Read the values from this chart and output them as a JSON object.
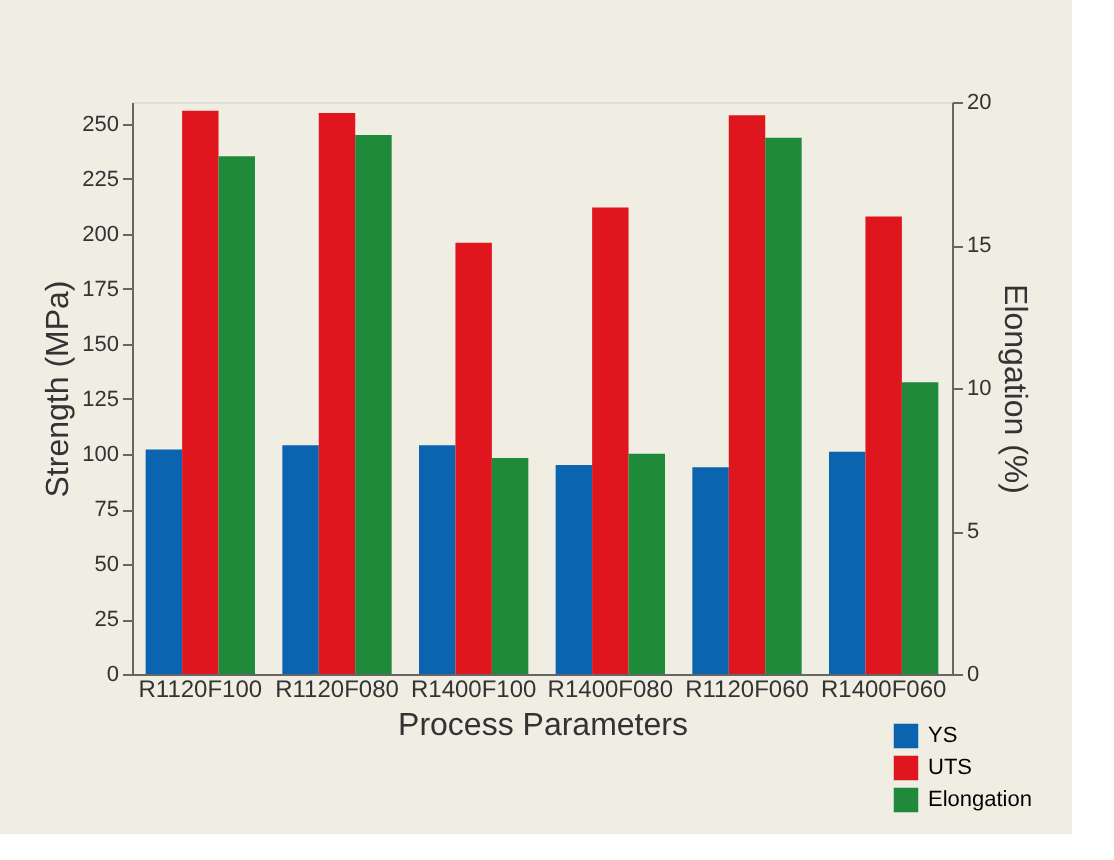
{
  "chart_data": {
    "type": "bar",
    "xlabel": "Process Parameters",
    "ylabel": "Strength (MPa)",
    "y2label": "Elongation (%)",
    "categories": [
      "R1120F100",
      "R1120F080",
      "R1400F100",
      "R1400F080",
      "R1120F060",
      "R1400F060"
    ],
    "series": [
      {
        "name": "YS",
        "color": "#0a64b0",
        "values": [
          102,
          104,
          104,
          95,
          94,
          101
        ]
      },
      {
        "name": "UTS",
        "color": "#e0161e",
        "values": [
          256,
          255,
          196,
          212,
          254,
          208
        ]
      },
      {
        "name": "Elongation",
        "color": "#1e8a3a",
        "values": [
          18.1,
          18.85,
          7.55,
          7.7,
          18.75,
          10.2
        ],
        "axis": "y2"
      }
    ],
    "ylim": [
      0,
      260
    ],
    "yticks": [
      0,
      25,
      50,
      75,
      100,
      125,
      150,
      175,
      200,
      225,
      250
    ],
    "y2lim": [
      0,
      20
    ],
    "y2ticks": [
      0,
      5,
      10,
      15,
      20
    ],
    "grid": false,
    "legend": "bottom right"
  }
}
